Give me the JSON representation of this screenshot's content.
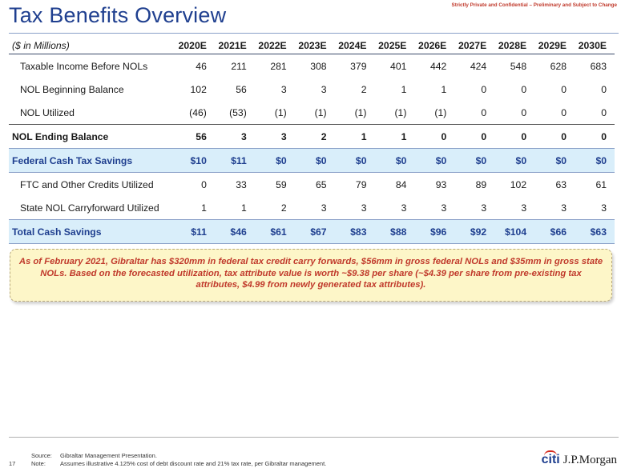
{
  "title": "Tax Benefits Overview",
  "confidential": "Strictly Private and Confidential – Preliminary and Subject to Change",
  "table": {
    "unit_label": "($ in Millions)",
    "years": [
      "2020E",
      "2021E",
      "2022E",
      "2023E",
      "2024E",
      "2025E",
      "2026E",
      "2027E",
      "2028E",
      "2029E",
      "2030E"
    ],
    "rows": [
      {
        "label": "Taxable Income Before NOLs",
        "values": [
          "46",
          "211",
          "281",
          "308",
          "379",
          "401",
          "442",
          "424",
          "548",
          "628",
          "683"
        ]
      },
      {
        "label": "NOL Beginning Balance",
        "values": [
          "102",
          "56",
          "3",
          "3",
          "2",
          "1",
          "1",
          "0",
          "0",
          "0",
          "0"
        ]
      },
      {
        "label": "NOL Utilized",
        "values": [
          "(46)",
          "(53)",
          "(1)",
          "(1)",
          "(1)",
          "(1)",
          "(1)",
          "0",
          "0",
          "0",
          "0"
        ]
      },
      {
        "label": "NOL Ending Balance",
        "values": [
          "56",
          "3",
          "3",
          "2",
          "1",
          "1",
          "0",
          "0",
          "0",
          "0",
          "0"
        ]
      },
      {
        "label": "Federal Cash Tax Savings",
        "values": [
          "$10",
          "$11",
          "$0",
          "$0",
          "$0",
          "$0",
          "$0",
          "$0",
          "$0",
          "$0",
          "$0"
        ]
      },
      {
        "label": "FTC and Other Credits Utilized",
        "values": [
          "0",
          "33",
          "59",
          "65",
          "79",
          "84",
          "93",
          "89",
          "102",
          "63",
          "61"
        ]
      },
      {
        "label": "State NOL Carryforward Utilized",
        "values": [
          "1",
          "1",
          "2",
          "3",
          "3",
          "3",
          "3",
          "3",
          "3",
          "3",
          "3"
        ]
      },
      {
        "label": "Total Cash Savings",
        "values": [
          "$11",
          "$46",
          "$61",
          "$67",
          "$83",
          "$88",
          "$96",
          "$92",
          "$104",
          "$66",
          "$63"
        ]
      }
    ]
  },
  "callout": "As of February 2021, Gibraltar has $320mm in federal tax credit carry forwards, $56mm in gross federal NOLs and $35mm in gross state NOLs. Based on the forecasted utilization, tax attribute value is worth ~$9.38 per share (~$4.39 per share from pre-existing tax attributes, $4.99 from newly generated tax attributes).",
  "footer": {
    "page_number": "17",
    "source_key": "Source:",
    "source_text": "Gibraltar Management Presentation.",
    "note_key": "Note:",
    "note_text": "Assumes illustrative 4.125% cost of debt discount rate and 21% tax rate, per Gibraltar management.",
    "logo_citi": "citi",
    "logo_jpm": "J.P.Morgan"
  }
}
